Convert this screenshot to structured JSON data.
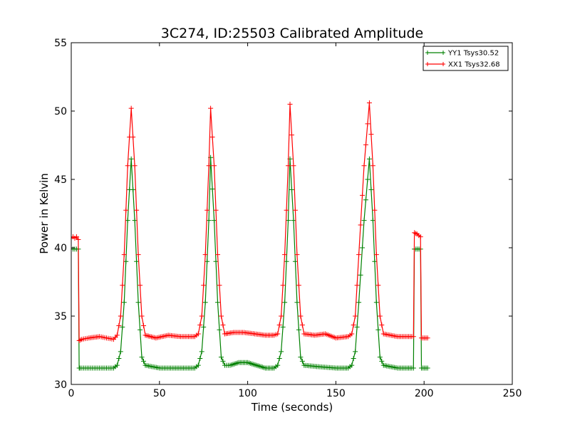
{
  "chart_data": {
    "type": "line",
    "title": "3C274, ID:25503 Calibrated Amplitude",
    "xlabel": "Time (seconds)",
    "ylabel": "Power in Kelvin",
    "xlim": [
      0,
      250
    ],
    "ylim": [
      30,
      55
    ],
    "xticks": [
      0,
      50,
      100,
      150,
      200,
      250
    ],
    "yticks": [
      30,
      35,
      40,
      45,
      50,
      55
    ],
    "grid": false,
    "legend_position": "top-right",
    "marker": "+",
    "series": [
      {
        "name": "YY1 Tsys30.52",
        "color": "#008000",
        "points": [
          [
            0,
            39.9
          ],
          [
            1,
            39.9
          ],
          [
            2,
            39.9
          ],
          [
            3,
            39.9
          ],
          [
            4,
            39.9
          ],
          [
            4.5,
            31.2
          ],
          [
            5,
            31.2
          ],
          [
            8,
            31.2
          ],
          [
            12,
            31.2
          ],
          [
            16,
            31.2
          ],
          [
            20,
            31.2
          ],
          [
            24,
            31.2
          ],
          [
            26,
            31.4
          ],
          [
            28,
            32.4
          ],
          [
            30,
            36
          ],
          [
            32,
            42
          ],
          [
            34,
            46.5
          ],
          [
            36,
            42
          ],
          [
            38,
            36
          ],
          [
            40,
            32
          ],
          [
            42,
            31.4
          ],
          [
            50,
            31.2
          ],
          [
            60,
            31.2
          ],
          [
            70,
            31.2
          ],
          [
            72,
            31.4
          ],
          [
            74,
            32.4
          ],
          [
            76,
            36
          ],
          [
            78,
            42
          ],
          [
            79,
            46.6
          ],
          [
            81,
            42
          ],
          [
            83,
            36
          ],
          [
            85,
            32
          ],
          [
            87,
            31.4
          ],
          [
            90,
            31.4
          ],
          [
            95,
            31.6
          ],
          [
            100,
            31.6
          ],
          [
            105,
            31.4
          ],
          [
            110,
            31.2
          ],
          [
            115,
            31.2
          ],
          [
            117,
            31.4
          ],
          [
            119,
            32.4
          ],
          [
            121,
            36
          ],
          [
            123,
            42
          ],
          [
            124,
            46.5
          ],
          [
            126,
            42
          ],
          [
            128,
            36
          ],
          [
            130,
            32
          ],
          [
            132,
            31.4
          ],
          [
            140,
            31.3
          ],
          [
            150,
            31.2
          ],
          [
            157,
            31.2
          ],
          [
            159,
            31.4
          ],
          [
            161,
            32.4
          ],
          [
            163,
            36
          ],
          [
            166,
            42
          ],
          [
            169,
            46.5
          ],
          [
            171,
            42
          ],
          [
            173,
            36
          ],
          [
            175,
            32
          ],
          [
            177,
            31.4
          ],
          [
            185,
            31.2
          ],
          [
            193,
            31.2
          ],
          [
            194,
            31.2
          ],
          [
            194.5,
            39.9
          ],
          [
            198,
            39.9
          ],
          [
            198.5,
            31.2
          ],
          [
            202,
            31.2
          ]
        ]
      },
      {
        "name": "XX1 Tsys32.68",
        "color": "#ff0000",
        "points": [
          [
            0,
            40.7
          ],
          [
            1,
            40.8
          ],
          [
            2,
            40.7
          ],
          [
            3,
            40.8
          ],
          [
            4,
            40.6
          ],
          [
            4.5,
            33.2
          ],
          [
            6,
            33.3
          ],
          [
            10,
            33.4
          ],
          [
            16,
            33.5
          ],
          [
            20,
            33.4
          ],
          [
            24,
            33.3
          ],
          [
            26,
            33.6
          ],
          [
            28,
            35
          ],
          [
            30,
            39.5
          ],
          [
            32,
            46
          ],
          [
            34,
            50.2
          ],
          [
            36,
            46
          ],
          [
            38,
            39.5
          ],
          [
            40,
            35
          ],
          [
            42,
            33.6
          ],
          [
            48,
            33.4
          ],
          [
            55,
            33.6
          ],
          [
            62,
            33.5
          ],
          [
            70,
            33.5
          ],
          [
            72,
            33.7
          ],
          [
            74,
            35
          ],
          [
            76,
            39.5
          ],
          [
            78,
            46
          ],
          [
            79,
            50.2
          ],
          [
            81,
            46
          ],
          [
            83,
            39.5
          ],
          [
            85,
            35
          ],
          [
            87,
            33.7
          ],
          [
            92,
            33.8
          ],
          [
            98,
            33.8
          ],
          [
            104,
            33.7
          ],
          [
            110,
            33.6
          ],
          [
            115,
            33.6
          ],
          [
            117,
            33.7
          ],
          [
            119,
            35
          ],
          [
            121,
            39.5
          ],
          [
            123,
            46
          ],
          [
            124,
            50.5
          ],
          [
            126,
            46
          ],
          [
            128,
            39.5
          ],
          [
            130,
            35
          ],
          [
            132,
            33.7
          ],
          [
            138,
            33.6
          ],
          [
            144,
            33.7
          ],
          [
            150,
            33.4
          ],
          [
            157,
            33.5
          ],
          [
            159,
            33.7
          ],
          [
            161,
            35
          ],
          [
            163,
            39.5
          ],
          [
            166,
            46
          ],
          [
            169,
            50.6
          ],
          [
            171,
            46
          ],
          [
            173,
            39.5
          ],
          [
            175,
            35
          ],
          [
            177,
            33.7
          ],
          [
            185,
            33.5
          ],
          [
            193,
            33.5
          ],
          [
            194,
            33.5
          ],
          [
            194.5,
            41.1
          ],
          [
            196,
            41.0
          ],
          [
            198,
            40.8
          ],
          [
            198.5,
            33.4
          ],
          [
            202,
            33.4
          ]
        ]
      }
    ]
  }
}
